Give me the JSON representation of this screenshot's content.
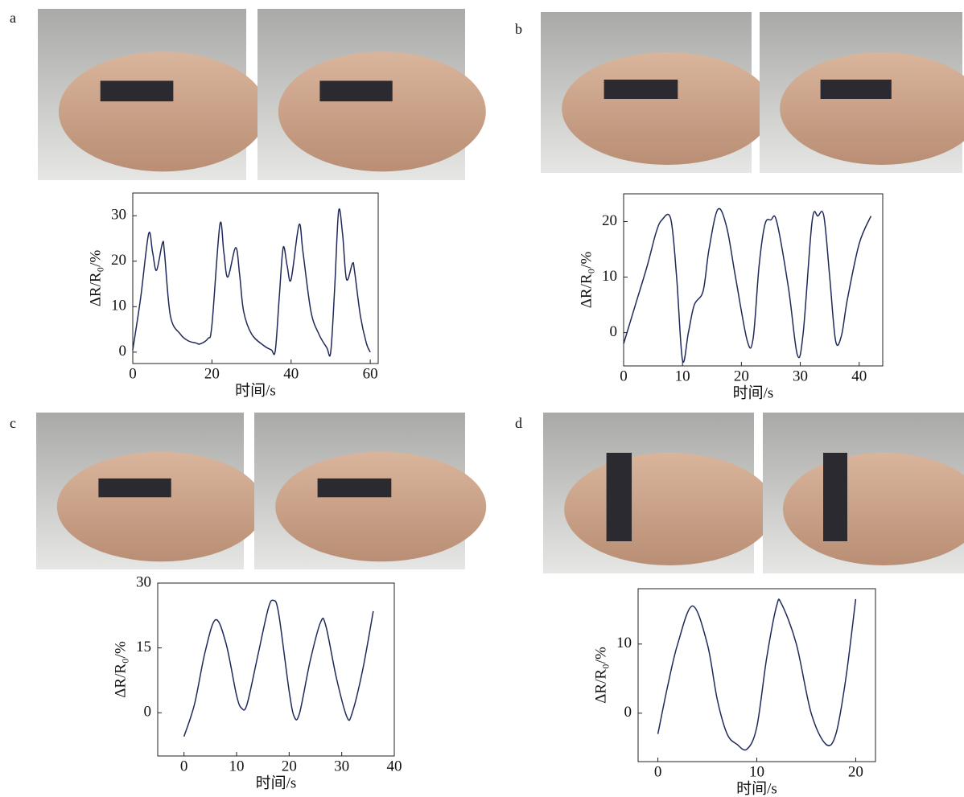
{
  "chart_data": [
    {
      "type": "line",
      "label": "a",
      "xlabel": "时间/s",
      "ylabel": "ΔR/R₀/%",
      "color": "#1f2a5a",
      "xlim": [
        0,
        62
      ],
      "ylim": [
        -2.5,
        35
      ],
      "xticks": [
        0,
        20,
        40,
        60
      ],
      "yticks": [
        0,
        10,
        20,
        30
      ],
      "x": [
        0,
        2,
        4,
        5,
        6,
        7.5,
        8,
        9.5,
        12,
        14,
        16,
        17,
        19,
        20,
        22,
        23,
        24,
        26,
        27,
        28,
        30,
        33,
        35,
        36,
        37,
        38,
        39,
        40,
        42,
        43,
        45,
        47,
        49,
        50,
        51,
        52,
        53,
        54,
        55.5,
        56,
        57.5,
        59,
        60
      ],
      "values": [
        0.5,
        12,
        26,
        22,
        18,
        24,
        22,
        8,
        4,
        2.5,
        2,
        1.8,
        3,
        6,
        28,
        22,
        16.5,
        23,
        17,
        9,
        4,
        1.5,
        0.5,
        0.3,
        12,
        23,
        19,
        16,
        28,
        22,
        9,
        4,
        1,
        0,
        14,
        31,
        26,
        16,
        19.5,
        18,
        8,
        2,
        0
      ]
    },
    {
      "type": "line",
      "label": "b",
      "xlabel": "时间/s",
      "ylabel": "ΔR/R₀/%",
      "color": "#1f2a5a",
      "xlim": [
        0,
        44
      ],
      "ylim": [
        -6,
        25
      ],
      "xticks": [
        0,
        10,
        20,
        30,
        40
      ],
      "yticks": [
        0,
        10,
        20
      ],
      "x": [
        0,
        2,
        4,
        5.5,
        6.5,
        8,
        9,
        10,
        11,
        12,
        13.5,
        14.5,
        16,
        17.5,
        19,
        21,
        22,
        23,
        24,
        25,
        26,
        28,
        29.5,
        30.5,
        32,
        33,
        34,
        35,
        36,
        37,
        38,
        40,
        42
      ],
      "values": [
        -2,
        5,
        12,
        18,
        20.3,
        20.5,
        10,
        -5,
        0,
        5,
        7.5,
        15,
        22.2,
        19,
        10,
        -1.5,
        -1,
        12,
        19.5,
        20.3,
        20,
        8,
        -4,
        0,
        20,
        21,
        21,
        10,
        -1.5,
        -0.5,
        6,
        16,
        21
      ]
    },
    {
      "type": "line",
      "label": "c",
      "xlabel": "时间/s",
      "ylabel": "ΔR/R₀/%",
      "color": "#1f2a5a",
      "xlim": [
        -5,
        40
      ],
      "ylim": [
        -10,
        30
      ],
      "xticks": [
        0,
        10,
        20,
        30,
        40
      ],
      "yticks": [
        0,
        15,
        30
      ],
      "x": [
        0,
        2,
        4,
        6,
        8,
        10,
        11,
        12,
        14,
        16,
        17,
        18,
        20,
        21,
        22,
        24,
        26,
        27,
        29,
        31,
        32,
        34,
        36
      ],
      "values": [
        -5.5,
        2,
        14,
        21.5,
        16,
        4,
        1,
        2,
        13,
        24,
        26,
        23,
        5,
        -1,
        0,
        12,
        21,
        20,
        8,
        -1,
        0,
        10,
        23.5
      ]
    },
    {
      "type": "line",
      "label": "d",
      "xlabel": "时间/s",
      "ylabel": "ΔR/R₀/%",
      "color": "#1f2a5a",
      "xlim": [
        -2,
        22
      ],
      "ylim": [
        -7,
        18
      ],
      "xticks": [
        0,
        10,
        20
      ],
      "yticks": [
        0,
        10
      ],
      "x": [
        0,
        1,
        2,
        3.5,
        5,
        6,
        7,
        8,
        9,
        10,
        11,
        12,
        12.5,
        14,
        15.5,
        17,
        18,
        19,
        20
      ],
      "values": [
        -3,
        4,
        10,
        15.5,
        10,
        2,
        -3,
        -4.5,
        -5.2,
        -2,
        8,
        15.5,
        15.8,
        10,
        0,
        -4.5,
        -3,
        5,
        16.5
      ]
    }
  ]
}
